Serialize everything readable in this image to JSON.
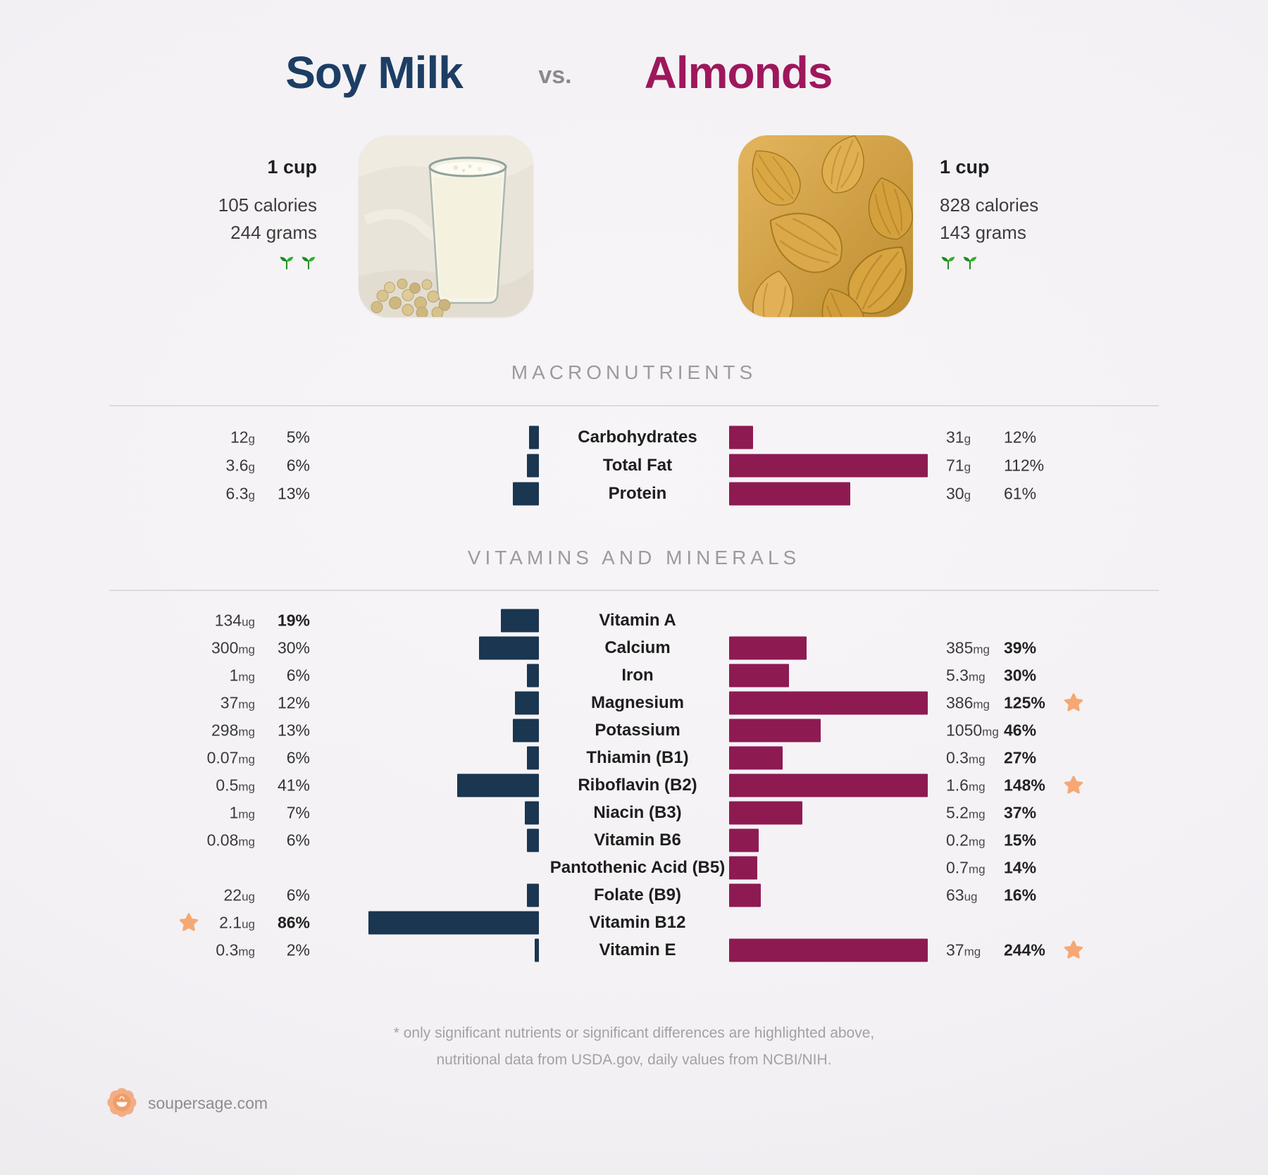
{
  "header": {
    "left_title": "Soy Milk",
    "vs_label": "vs.",
    "right_title": "Almonds",
    "left_info": {
      "serving": "1 cup",
      "calories": "105 calories",
      "grams": "244 grams"
    },
    "right_info": {
      "serving": "1 cup",
      "calories": "828 calories",
      "grams": "143 grams"
    }
  },
  "colors": {
    "soy_bar": "#1a3650",
    "almond_bar": "#8e1a52",
    "soy_title": "#1d3e64",
    "almond_title": "#9e175c",
    "star": "#f5a873",
    "sprout_green": "#2da12d",
    "background": "#f3f1f4",
    "section_header_gray": "#9b9b9b"
  },
  "sections": {
    "macros": {
      "title": "MACRONUTRIENTS",
      "rows": [
        {
          "label": "Carbohydrates",
          "left": {
            "value": "12",
            "unit": "g",
            "pct": 5,
            "pct_label": "5%"
          },
          "right": {
            "value": "31",
            "unit": "g",
            "pct": 12,
            "pct_label": "12%"
          }
        },
        {
          "label": "Total Fat",
          "left": {
            "value": "3.6",
            "unit": "g",
            "pct": 6,
            "pct_label": "6%"
          },
          "right": {
            "value": "71",
            "unit": "g",
            "pct": 112,
            "pct_label": "112%"
          }
        },
        {
          "label": "Protein",
          "left": {
            "value": "6.3",
            "unit": "g",
            "pct": 13,
            "pct_label": "13%"
          },
          "right": {
            "value": "30",
            "unit": "g",
            "pct": 61,
            "pct_label": "61%"
          }
        }
      ]
    },
    "vitamins": {
      "title": "VITAMINS AND MINERALS",
      "rows": [
        {
          "label": "Vitamin A",
          "left": {
            "value": "134",
            "unit": "ug",
            "pct": 19,
            "pct_label": "19%",
            "bold": true
          }
        },
        {
          "label": "Calcium",
          "left": {
            "value": "300",
            "unit": "mg",
            "pct": 30,
            "pct_label": "30%"
          },
          "right": {
            "value": "385",
            "unit": "mg",
            "pct": 39,
            "pct_label": "39%",
            "bold": true
          }
        },
        {
          "label": "Iron",
          "left": {
            "value": "1",
            "unit": "mg",
            "pct": 6,
            "pct_label": "6%"
          },
          "right": {
            "value": "5.3",
            "unit": "mg",
            "pct": 30,
            "pct_label": "30%",
            "bold": true
          }
        },
        {
          "label": "Magnesium",
          "left": {
            "value": "37",
            "unit": "mg",
            "pct": 12,
            "pct_label": "12%"
          },
          "right": {
            "value": "386",
            "unit": "mg",
            "pct": 125,
            "pct_label": "125%",
            "bold": true,
            "starred": true
          }
        },
        {
          "label": "Potassium",
          "left": {
            "value": "298",
            "unit": "mg",
            "pct": 13,
            "pct_label": "13%"
          },
          "right": {
            "value": "1050",
            "unit": "mg",
            "pct": 46,
            "pct_label": "46%",
            "bold": true
          }
        },
        {
          "label": "Thiamin (B1)",
          "left": {
            "value": "0.07",
            "unit": "mg",
            "pct": 6,
            "pct_label": "6%"
          },
          "right": {
            "value": "0.3",
            "unit": "mg",
            "pct": 27,
            "pct_label": "27%",
            "bold": true
          }
        },
        {
          "label": "Riboflavin (B2)",
          "left": {
            "value": "0.5",
            "unit": "mg",
            "pct": 41,
            "pct_label": "41%"
          },
          "right": {
            "value": "1.6",
            "unit": "mg",
            "pct": 148,
            "pct_label": "148%",
            "bold": true,
            "starred": true
          }
        },
        {
          "label": "Niacin (B3)",
          "left": {
            "value": "1",
            "unit": "mg",
            "pct": 7,
            "pct_label": "7%"
          },
          "right": {
            "value": "5.2",
            "unit": "mg",
            "pct": 37,
            "pct_label": "37%",
            "bold": true
          }
        },
        {
          "label": "Vitamin B6",
          "left": {
            "value": "0.08",
            "unit": "mg",
            "pct": 6,
            "pct_label": "6%"
          },
          "right": {
            "value": "0.2",
            "unit": "mg",
            "pct": 15,
            "pct_label": "15%",
            "bold": true
          }
        },
        {
          "label": "Pantothenic Acid (B5)",
          "right": {
            "value": "0.7",
            "unit": "mg",
            "pct": 14,
            "pct_label": "14%",
            "bold": true
          }
        },
        {
          "label": "Folate (B9)",
          "left": {
            "value": "22",
            "unit": "ug",
            "pct": 6,
            "pct_label": "6%"
          },
          "right": {
            "value": "63",
            "unit": "ug",
            "pct": 16,
            "pct_label": "16%",
            "bold": true
          }
        },
        {
          "label": "Vitamin B12",
          "left": {
            "value": "2.1",
            "unit": "ug",
            "pct": 86,
            "pct_label": "86%",
            "bold": true,
            "starred": true
          }
        },
        {
          "label": "Vitamin E",
          "left": {
            "value": "0.3",
            "unit": "mg",
            "pct": 2,
            "pct_label": "2%"
          },
          "right": {
            "value": "37",
            "unit": "mg",
            "pct": 244,
            "pct_label": "244%",
            "bold": true,
            "starred": true
          }
        }
      ]
    }
  },
  "footnote": {
    "line1": "* only significant nutrients or significant differences are highlighted above,",
    "line2": "nutritional data from USDA.gov, daily values from NCBI/NIH."
  },
  "footer": {
    "site": "soupersage.com"
  },
  "chart_data": [
    {
      "type": "bar",
      "title": "MACRONUTRIENTS",
      "categories": [
        "Carbohydrates",
        "Total Fat",
        "Protein"
      ],
      "series": [
        {
          "name": "Soy Milk (% daily value)",
          "values": [
            5,
            6,
            13
          ],
          "amounts": [
            "12g",
            "3.6g",
            "6.3g"
          ]
        },
        {
          "name": "Almonds (% daily value)",
          "values": [
            12,
            112,
            61
          ],
          "amounts": [
            "31g",
            "71g",
            "30g"
          ]
        }
      ],
      "layout": "mirrored horizontal bars from center labels, bar length capped at 100%",
      "xlim": [
        0,
        100
      ]
    },
    {
      "type": "bar",
      "title": "VITAMINS AND MINERALS",
      "categories": [
        "Vitamin A",
        "Calcium",
        "Iron",
        "Magnesium",
        "Potassium",
        "Thiamin (B1)",
        "Riboflavin (B2)",
        "Niacin (B3)",
        "Vitamin B6",
        "Pantothenic Acid (B5)",
        "Folate (B9)",
        "Vitamin B12",
        "Vitamin E"
      ],
      "series": [
        {
          "name": "Soy Milk (% daily value)",
          "values": [
            19,
            30,
            6,
            12,
            13,
            6,
            41,
            7,
            6,
            null,
            6,
            86,
            2
          ],
          "amounts": [
            "134ug",
            "300mg",
            "1mg",
            "37mg",
            "298mg",
            "0.07mg",
            "0.5mg",
            "1mg",
            "0.08mg",
            null,
            "22ug",
            "2.1ug",
            "0.3mg"
          ],
          "starred_categories": [
            "Vitamin B12"
          ]
        },
        {
          "name": "Almonds (% daily value)",
          "values": [
            null,
            39,
            30,
            125,
            46,
            27,
            148,
            37,
            15,
            14,
            16,
            null,
            244
          ],
          "amounts": [
            null,
            "385mg",
            "5.3mg",
            "386mg",
            "1050mg",
            "0.3mg",
            "1.6mg",
            "5.2mg",
            "0.2mg",
            "0.7mg",
            "63ug",
            null,
            "37mg"
          ],
          "starred_categories": [
            "Magnesium",
            "Riboflavin (B2)",
            "Vitamin E"
          ]
        }
      ],
      "layout": "mirrored horizontal bars from center labels, bar length capped at 100%",
      "xlim": [
        0,
        100
      ]
    }
  ]
}
